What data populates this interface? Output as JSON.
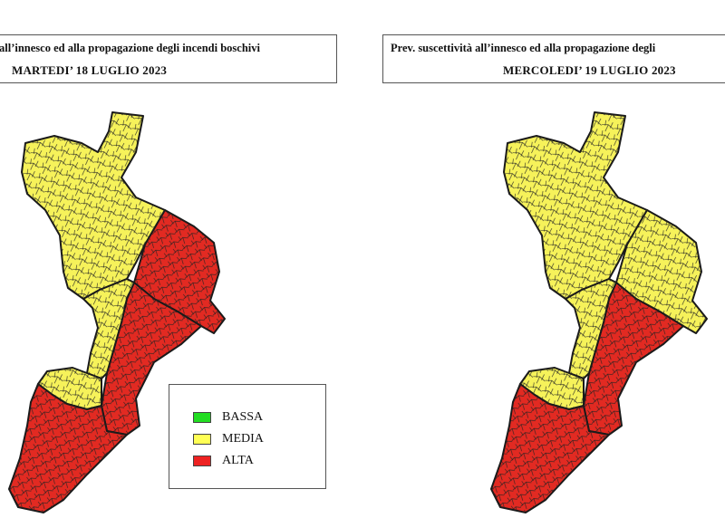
{
  "maps": [
    {
      "header_line1": "all’innesco ed alla propagazione degli incendi boschivi",
      "header_line2": "MARTEDI’ 18 LUGLIO 2023",
      "zones": {
        "north": "MEDIA",
        "central": "MEDIA",
        "east": "ALTA",
        "ionian_coast": "ALTA",
        "south": "ALTA",
        "tyrrhenian_south": "MEDIA"
      }
    },
    {
      "header_line1": "Prev. suscettività all’innesco ed alla propagazione degli",
      "header_line2": "MERCOLEDI’ 19 LUGLIO 2023",
      "zones": {
        "north": "MEDIA",
        "central": "MEDIA",
        "east": "MEDIA",
        "ionian_coast": "ALTA",
        "south": "ALTA",
        "tyrrhenian_south": "MEDIA"
      }
    }
  ],
  "legend": {
    "items": [
      {
        "label": "BASSA",
        "color": "#22dd22"
      },
      {
        "label": "MEDIA",
        "color": "#ffff55"
      },
      {
        "label": "ALTA",
        "color": "#ee2222"
      }
    ]
  },
  "colors": {
    "MEDIA": "#f6f25a",
    "ALTA": "#e22a22",
    "border": "#1a1a1a"
  }
}
